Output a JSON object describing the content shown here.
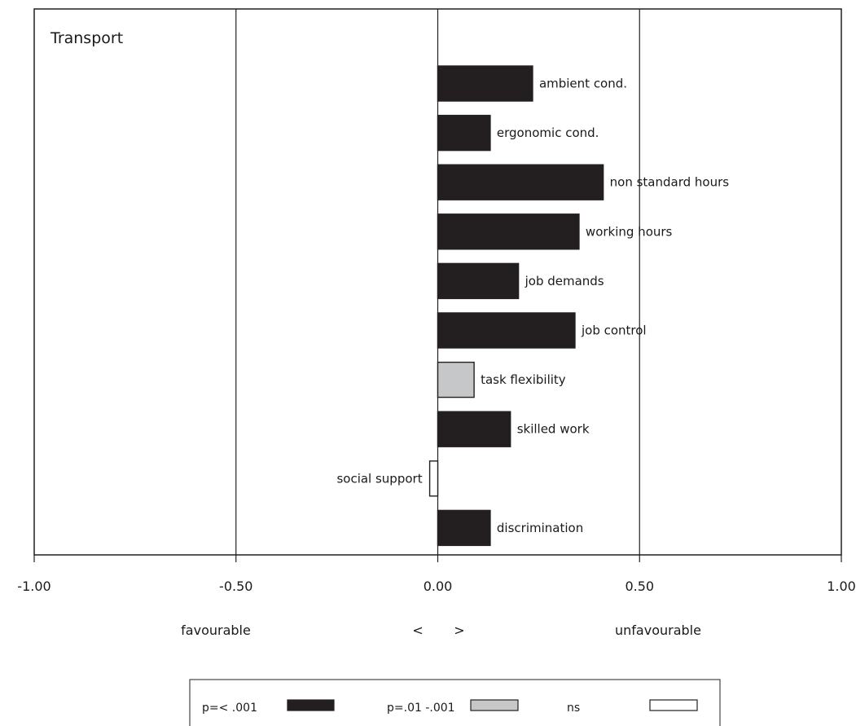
{
  "chart_data": {
    "type": "bar",
    "orientation": "horizontal",
    "title": "Transport",
    "categories": [
      "ambient cond.",
      "ergonomic cond.",
      "non standard hours",
      "working hours",
      "job demands",
      "job control",
      "task flexibility",
      "skilled work",
      "social support",
      "discrimination"
    ],
    "values": [
      0.235,
      0.13,
      0.41,
      0.35,
      0.2,
      0.34,
      0.09,
      0.18,
      -0.02,
      0.13
    ],
    "significance": [
      "p001",
      "p001",
      "p001",
      "p001",
      "p001",
      "p001",
      "p01",
      "p001",
      "ns",
      "p001"
    ],
    "xlim": [
      -1.0,
      1.0
    ],
    "xticks": [
      -1.0,
      -0.5,
      0.0,
      0.5,
      1.0
    ],
    "xtick_labels": [
      "-1.00",
      "-0.50",
      "0.00",
      "0.50",
      "1.00"
    ],
    "grid": "vertical",
    "direction_labels": {
      "left": "favourable",
      "less": "<",
      "greater": ">",
      "right": "unfavourable"
    },
    "legend": {
      "placement": "bottom",
      "entries": [
        {
          "key": "p001",
          "label": "p=< .001",
          "color": "#231f20"
        },
        {
          "key": "p01",
          "label": "p=.01 -.001",
          "color": "#c6c7c9"
        },
        {
          "key": "ns",
          "label": "ns",
          "color": "#ffffff"
        }
      ]
    }
  }
}
